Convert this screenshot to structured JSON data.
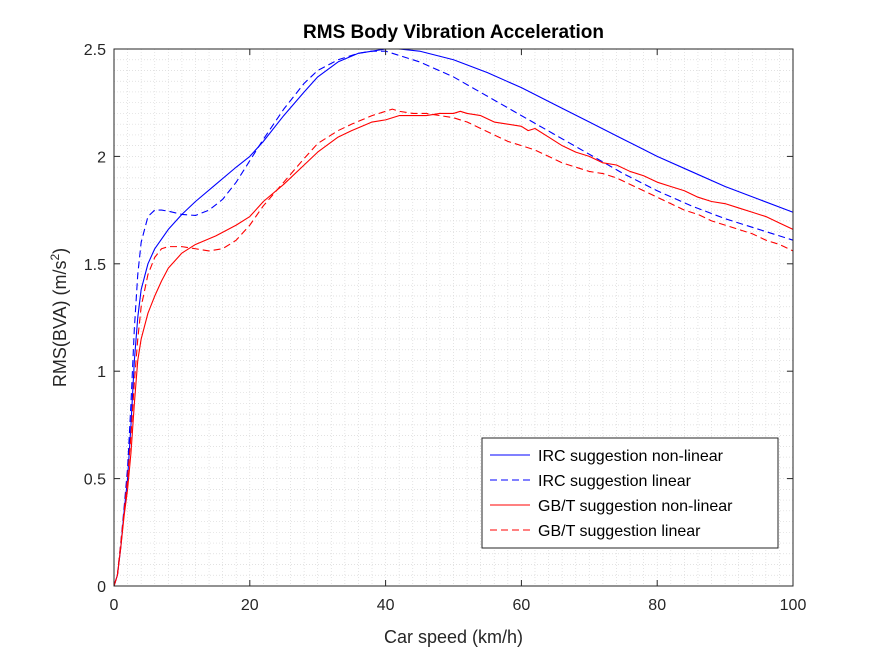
{
  "chart_data": {
    "type": "line",
    "title": "RMS Body Vibration Acceleration",
    "xlabel": "Car speed (km/h)",
    "ylabel_main": "RMS(BVA) (m/s",
    "ylabel_sup": "2",
    "ylabel_close": ")",
    "xlim": [
      0,
      100
    ],
    "ylim": [
      0,
      2.5
    ],
    "xticks": [
      0,
      20,
      40,
      60,
      80,
      100
    ],
    "yticks": [
      0,
      0.5,
      1,
      1.5,
      2,
      2.5
    ],
    "xtick_labels": [
      "0",
      "20",
      "40",
      "60",
      "80",
      "100"
    ],
    "ytick_labels": [
      "0",
      "0.5",
      "1",
      "1.5",
      "2",
      "2.5"
    ],
    "grid": "minor-dotted",
    "legend_position": "bottom-right",
    "series": [
      {
        "name": "IRC suggestion non-linear",
        "color": "#0000ff",
        "style": "solid",
        "x": [
          0,
          0.5,
          1,
          1.5,
          2,
          2.5,
          3,
          3.5,
          4,
          5,
          6,
          8,
          10,
          12,
          15,
          18,
          20,
          22,
          25,
          28,
          30,
          33,
          36,
          38,
          40,
          42,
          45,
          50,
          55,
          60,
          65,
          70,
          75,
          80,
          85,
          90,
          95,
          100
        ],
        "y": [
          0,
          0.05,
          0.18,
          0.35,
          0.5,
          0.75,
          1.05,
          1.25,
          1.38,
          1.5,
          1.57,
          1.66,
          1.73,
          1.79,
          1.87,
          1.95,
          2.0,
          2.07,
          2.19,
          2.3,
          2.37,
          2.44,
          2.48,
          2.49,
          2.5,
          2.5,
          2.49,
          2.45,
          2.39,
          2.32,
          2.24,
          2.16,
          2.08,
          2.0,
          1.93,
          1.86,
          1.8,
          1.74
        ]
      },
      {
        "name": "IRC suggestion linear",
        "color": "#0000ff",
        "style": "dashed",
        "x": [
          0,
          0.5,
          1,
          1.5,
          2,
          2.5,
          3,
          3.5,
          4,
          5,
          6,
          7,
          8,
          10,
          12,
          14,
          16,
          18,
          20,
          22,
          25,
          28,
          30,
          33,
          36,
          38,
          40,
          42,
          45,
          50,
          55,
          60,
          65,
          70,
          75,
          80,
          85,
          90,
          95,
          100
        ],
        "y": [
          0,
          0.05,
          0.2,
          0.37,
          0.55,
          0.85,
          1.2,
          1.45,
          1.6,
          1.72,
          1.75,
          1.75,
          1.745,
          1.73,
          1.725,
          1.75,
          1.8,
          1.88,
          1.98,
          2.08,
          2.22,
          2.34,
          2.4,
          2.45,
          2.48,
          2.49,
          2.49,
          2.47,
          2.44,
          2.37,
          2.28,
          2.19,
          2.1,
          2.01,
          1.92,
          1.84,
          1.77,
          1.71,
          1.66,
          1.61
        ]
      },
      {
        "name": "GB/T suggestion non-linear",
        "color": "#ff0000",
        "style": "solid",
        "x": [
          0,
          0.5,
          1,
          1.5,
          2,
          2.5,
          3,
          3.5,
          4,
          5,
          6,
          7,
          8,
          10,
          12,
          15,
          18,
          20,
          22,
          25,
          28,
          30,
          33,
          35,
          38,
          40,
          42,
          44,
          46,
          48,
          50,
          51,
          52,
          54,
          56,
          58,
          60,
          61,
          62,
          64,
          66,
          68,
          70,
          72,
          74,
          76,
          78,
          80,
          82,
          84,
          86,
          88,
          90,
          92,
          94,
          96,
          98,
          100
        ],
        "y": [
          0,
          0.05,
          0.18,
          0.33,
          0.45,
          0.62,
          0.85,
          1.05,
          1.15,
          1.27,
          1.35,
          1.42,
          1.48,
          1.55,
          1.59,
          1.63,
          1.68,
          1.72,
          1.79,
          1.87,
          1.96,
          2.02,
          2.09,
          2.12,
          2.16,
          2.17,
          2.19,
          2.19,
          2.19,
          2.2,
          2.2,
          2.21,
          2.2,
          2.19,
          2.16,
          2.15,
          2.14,
          2.12,
          2.13,
          2.09,
          2.05,
          2.02,
          2.0,
          1.97,
          1.96,
          1.93,
          1.91,
          1.88,
          1.86,
          1.84,
          1.81,
          1.79,
          1.78,
          1.76,
          1.74,
          1.72,
          1.69,
          1.66
        ]
      },
      {
        "name": "GB/T suggestion linear",
        "color": "#ff0000",
        "style": "dashed",
        "x": [
          0,
          0.5,
          1,
          1.5,
          2,
          2.5,
          3,
          3.5,
          4,
          5,
          6,
          7,
          8,
          10,
          12,
          14,
          16,
          18,
          20,
          22,
          25,
          28,
          30,
          33,
          35,
          38,
          40,
          41,
          42,
          44,
          46,
          48,
          50,
          52,
          54,
          56,
          58,
          60,
          62,
          64,
          66,
          68,
          70,
          72,
          74,
          76,
          78,
          80,
          82,
          84,
          86,
          88,
          90,
          92,
          94,
          96,
          98,
          100
        ],
        "y": [
          0,
          0.05,
          0.2,
          0.35,
          0.5,
          0.7,
          0.95,
          1.15,
          1.3,
          1.45,
          1.53,
          1.57,
          1.58,
          1.58,
          1.57,
          1.56,
          1.57,
          1.61,
          1.68,
          1.77,
          1.88,
          1.99,
          2.06,
          2.12,
          2.15,
          2.19,
          2.21,
          2.22,
          2.21,
          2.2,
          2.2,
          2.19,
          2.18,
          2.16,
          2.13,
          2.1,
          2.07,
          2.05,
          2.03,
          2.0,
          1.97,
          1.95,
          1.93,
          1.92,
          1.9,
          1.87,
          1.84,
          1.81,
          1.78,
          1.75,
          1.73,
          1.7,
          1.68,
          1.66,
          1.64,
          1.61,
          1.59,
          1.56
        ]
      }
    ]
  }
}
